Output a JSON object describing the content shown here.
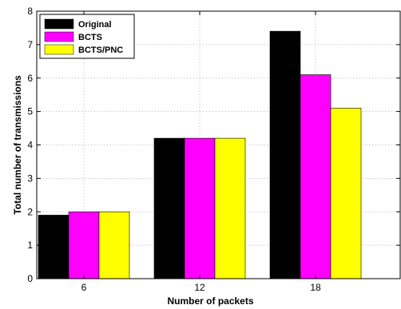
{
  "chart_data": {
    "type": "bar",
    "categories": [
      "6",
      "12",
      "18"
    ],
    "series": [
      {
        "name": "Original",
        "color": "#000000",
        "values": [
          1.9,
          4.2,
          7.4
        ]
      },
      {
        "name": "BCTS",
        "color": "#ff00ff",
        "values": [
          2.0,
          4.2,
          6.1
        ]
      },
      {
        "name": "BCTS/PNC",
        "color": "#ffff00",
        "values": [
          2.0,
          4.2,
          5.1
        ]
      }
    ],
    "title": "",
    "xlabel": "Number of packets",
    "ylabel": "Total number of transmissions",
    "ylim": [
      0,
      8
    ],
    "yticks": [
      "0",
      "1",
      "2",
      "3",
      "4",
      "5",
      "6",
      "7",
      "8"
    ],
    "grid": true,
    "legend_position": "top-left"
  }
}
